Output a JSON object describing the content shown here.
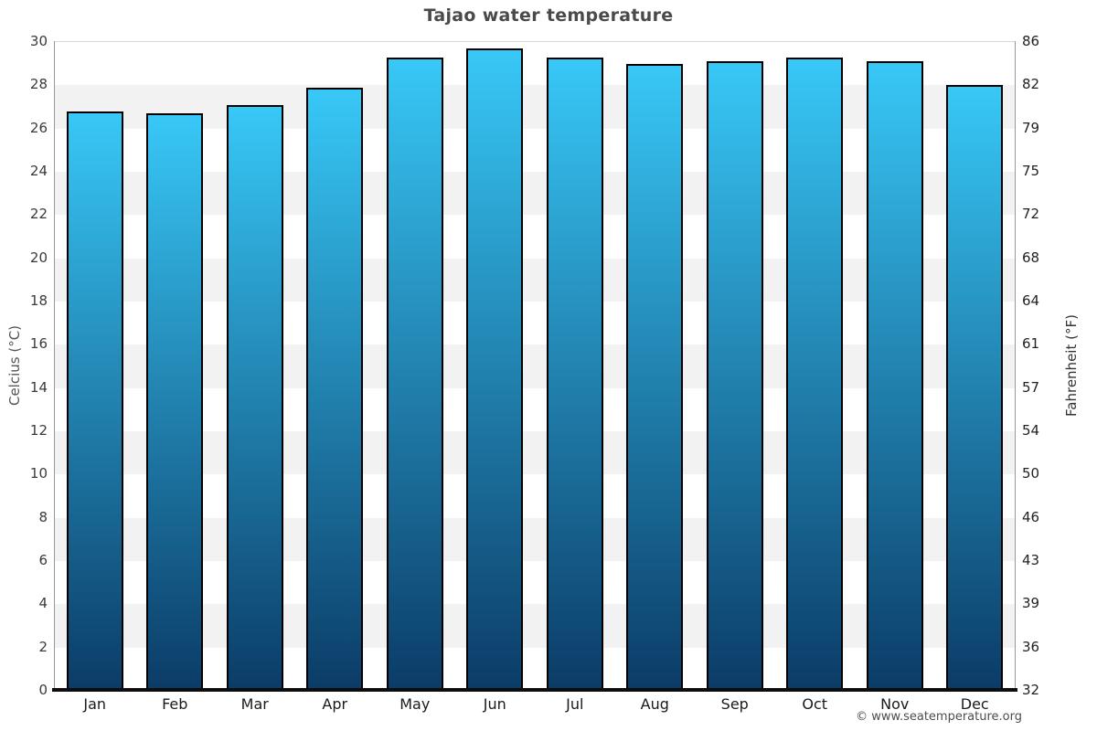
{
  "title": "Tajao water temperature",
  "footer": "© www.seatemperature.org",
  "axes": {
    "left_title": "Celcius (°C)",
    "right_title": "Fahrenheit (°F)"
  },
  "chart_data": {
    "type": "bar",
    "title": "Tajao water temperature",
    "categories": [
      "Jan",
      "Feb",
      "Mar",
      "Apr",
      "May",
      "Jun",
      "Jul",
      "Aug",
      "Sep",
      "Oct",
      "Nov",
      "Dec"
    ],
    "values": [
      26.8,
      26.7,
      27.1,
      27.9,
      29.3,
      29.7,
      29.3,
      29.0,
      29.1,
      29.3,
      29.1,
      28.0
    ],
    "unit": "°C",
    "xlabel": "",
    "ylabel_left": "Celcius (°C)",
    "ylabel_right": "Fahrenheit (°F)",
    "ylim": [
      0,
      30
    ],
    "yticks_celsius": [
      30,
      28,
      26,
      24,
      22,
      20,
      18,
      16,
      14,
      12,
      10,
      8,
      6,
      4,
      2,
      0
    ],
    "yticks_fahrenheit": [
      86,
      82,
      79,
      75,
      72,
      68,
      64,
      61,
      57,
      54,
      50,
      46,
      43,
      39,
      36,
      32
    ],
    "grid": "alternating horizontal bands every 2°C, light gray on white",
    "legend": "none",
    "colors": {
      "bar_gradient_top": "#38c8f7",
      "bar_gradient_bottom": "#0b3c67",
      "bar_border": "#000000",
      "band_gray": "#f2f2f2",
      "band_white": "#ffffff",
      "baseline": "#0d0d0d",
      "axis_line": "#999999",
      "title_text": "#4a4a4a",
      "tick_text": "#3a3a3a",
      "footer_text": "#4d4d4d"
    }
  }
}
